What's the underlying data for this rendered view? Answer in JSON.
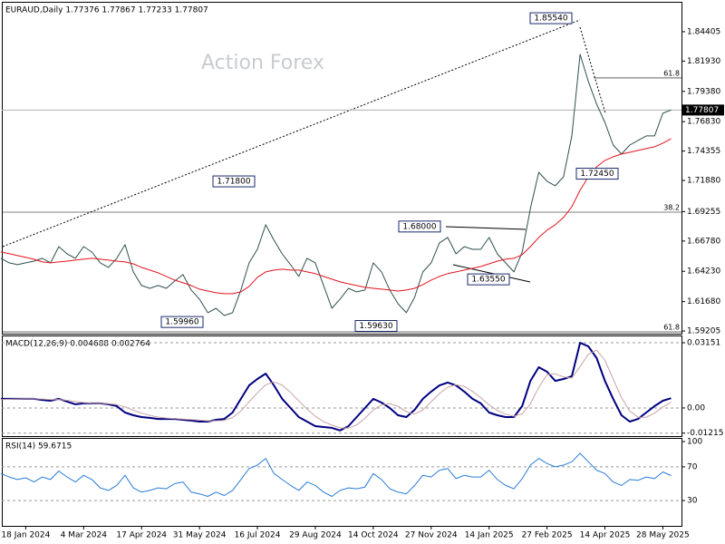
{
  "chart_data": [
    {
      "type": "line",
      "title": "EURAUD,Daily  1.77376 1.77867 1.77233 1.77807",
      "watermark": "Action Forex",
      "categories": [
        null,
        null,
        null,
        "18 Jan 2024",
        null,
        null,
        null,
        null,
        null,
        null,
        "4 Mar 2024",
        null,
        null,
        null,
        null,
        null,
        null,
        "17 Apr 2024",
        null,
        null,
        null,
        null,
        null,
        null,
        "31 May 2024",
        null,
        null,
        null,
        null,
        null,
        null,
        "16 Jul 2024",
        null,
        null,
        null,
        null,
        null,
        null,
        "29 Aug 2024",
        null,
        null,
        null,
        null,
        null,
        null,
        "14 Oct 2024",
        null,
        null,
        null,
        null,
        null,
        null,
        "27 Nov 2024",
        null,
        null,
        null,
        null,
        null,
        null,
        "14 Jan 2025",
        null,
        null,
        null,
        null,
        null,
        null,
        "27 Feb 2025",
        null,
        null,
        null,
        null,
        null,
        null,
        "14 Apr 2025",
        null,
        null,
        null,
        null,
        null,
        null,
        "28 May 2025",
        null
      ],
      "series": [
        {
          "color": "#2f4f4f",
          "values": [
            1.6532,
            1.6494,
            1.6479,
            1.6494,
            1.6509,
            1.6532,
            1.6494,
            1.6631,
            1.657,
            1.6532,
            1.6631,
            1.6585,
            1.6494,
            1.6456,
            1.6532,
            1.6647,
            1.6418,
            1.6303,
            1.628,
            1.6303,
            1.628,
            1.6341,
            1.6395,
            1.6265,
            1.6189,
            1.6074,
            1.6112,
            1.6051,
            1.6074,
            1.6265,
            1.6494,
            1.6608,
            1.6815,
            1.6685,
            1.657,
            1.6479,
            1.638,
            1.6532,
            1.6494,
            1.6303,
            1.6112,
            1.6189,
            1.628,
            1.625,
            1.6265,
            1.6494,
            1.6418,
            1.6265,
            1.615,
            1.6074,
            1.6204,
            1.6418,
            1.6494,
            1.6662,
            1.6708,
            1.657,
            1.6631,
            1.6608,
            1.6608,
            1.6708,
            1.657,
            1.6494,
            1.6418,
            1.6585,
            1.6952,
            1.7257,
            1.7181,
            1.7143,
            1.7219,
            1.7563,
            1.825,
            1.8021,
            1.783,
            1.7677,
            1.7486,
            1.741,
            1.7486,
            1.7525,
            1.7563,
            1.7563,
            1.7754,
            1.7781
          ]
        },
        {
          "color": "#e3141e",
          "values": [
            1.6586,
            1.6571,
            1.6555,
            1.654,
            1.6525,
            1.6502,
            1.6494,
            1.6502,
            1.6509,
            1.6517,
            1.6525,
            1.6532,
            1.6525,
            1.6517,
            1.6509,
            1.6502,
            1.6486,
            1.6456,
            1.6433,
            1.641,
            1.638,
            1.6349,
            1.6326,
            1.6303,
            1.6273,
            1.6257,
            1.6242,
            1.6235,
            1.6235,
            1.625,
            1.6296,
            1.6372,
            1.6418,
            1.6433,
            1.6441,
            1.6433,
            1.6433,
            1.6418,
            1.6403,
            1.638,
            1.6357,
            1.6334,
            1.6318,
            1.6303,
            1.6288,
            1.628,
            1.6273,
            1.6265,
            1.6257,
            1.6265,
            1.628,
            1.6311,
            1.6349,
            1.638,
            1.6403,
            1.6418,
            1.6433,
            1.6448,
            1.6464,
            1.6486,
            1.6509,
            1.6525,
            1.6532,
            1.6563,
            1.6631,
            1.6708,
            1.6769,
            1.6815,
            1.6876,
            1.6967,
            1.7105,
            1.7219,
            1.7303,
            1.7357,
            1.7387,
            1.741,
            1.7425,
            1.7441,
            1.7456,
            1.7471,
            1.7502,
            1.754
          ]
        }
      ],
      "ylim": [
        1.5898,
        1.8692
      ],
      "yticks": [
        1.84405,
        {
          "value": 1.8193,
          "label": "1.81930"
        },
        {
          "value": 1.7938,
          "label": "1.79380"
        },
        {
          "value": 1.7683,
          "label": "1.76830"
        },
        1.74355,
        {
          "value": 1.7188,
          "label": "1.71880"
        },
        1.69255,
        {
          "value": 1.6678,
          "label": "1.66780"
        },
        {
          "value": 1.6423,
          "label": "1.64230"
        },
        {
          "value": 1.6168,
          "label": "1.61680"
        },
        1.59205
      ],
      "grid": false,
      "current_price": 1.77807,
      "annotations": [
        {
          "value": 1.8554,
          "label": "1.85540"
        },
        {
          "value": 1.718,
          "label": "1.71800"
        },
        {
          "value": 1.68,
          "label": "1.68000"
        },
        {
          "value": 1.6355,
          "label": "1.63550"
        },
        {
          "value": 1.5996,
          "label": "1.59960"
        },
        {
          "value": 1.5963,
          "label": "1.59630"
        },
        {
          "value": 1.7245,
          "label": "1.72450"
        }
      ],
      "levels": [
        {
          "value": 1.8051,
          "label": "61.8"
        },
        {
          "value": 1.6921,
          "label": "38.2"
        },
        {
          "value": 1.5913,
          "label": "61.8"
        }
      ]
    },
    {
      "type": "line",
      "title": "MACD(12,26,9) 0.004688 0.002764",
      "series": [
        {
          "color": "#000080",
          "values": [
            0.0044,
            0.0044,
            0.0044,
            0.0044,
            0.0044,
            0.0039,
            0.0035,
            0.0044,
            0.0031,
            0.0018,
            0.0022,
            0.0022,
            0.0022,
            0.0018,
            0.0009,
            -0.0022,
            -0.0035,
            -0.0044,
            -0.0048,
            -0.0053,
            -0.0053,
            -0.0053,
            -0.0057,
            -0.0061,
            -0.0066,
            -0.0066,
            -0.0057,
            -0.0053,
            -0.0022,
            0.0044,
            0.0109,
            0.014,
            0.0166,
            0.0109,
            0.0044,
            0,
            -0.0044,
            -0.0066,
            -0.0088,
            -0.0092,
            -0.0096,
            -0.0109,
            -0.0088,
            -0.0044,
            0,
            0.0044,
            0.0026,
            0,
            -0.0035,
            -0.0044,
            -0.0009,
            0.0044,
            0.0079,
            0.0109,
            0.0123,
            0.0109,
            0.0079,
            0.0044,
            0.0022,
            -0.0022,
            -0.0035,
            -0.0044,
            -0.0044,
            0.0009,
            0.0131,
            0.0197,
            0.0175,
            0.0131,
            0.014,
            0.0153,
            0.0315,
            0.0298,
            0.0241,
            0.0131,
            0.0044,
            -0.0035,
            -0.0066,
            -0.0053,
            -0.0022,
            0.0009,
            0.0035,
            0.0047
          ]
        },
        {
          "color": "#c9a3a3",
          "values": [
            0.004,
            0.0042,
            0.0043,
            0.0044,
            0.0044,
            0.0043,
            0.004,
            0.004,
            0.0037,
            0.0031,
            0.0026,
            0.0023,
            0.0022,
            0.0021,
            0.0016,
            0.0005,
            -0.0011,
            -0.0025,
            -0.0036,
            -0.0044,
            -0.0049,
            -0.0052,
            -0.0054,
            -0.0056,
            -0.0059,
            -0.0062,
            -0.0062,
            -0.006,
            -0.0046,
            -0.0015,
            0.003,
            0.0073,
            0.0112,
            0.0126,
            0.011,
            0.0075,
            0.0034,
            -0.0005,
            -0.004,
            -0.0066,
            -0.0083,
            -0.0096,
            -0.0098,
            -0.0082,
            -0.005,
            -0.001,
            0.0015,
            0.002,
            0.0008,
            -0.0018,
            -0.003,
            -0.001,
            0.003,
            0.007,
            0.01,
            0.0112,
            0.0104,
            0.008,
            0.005,
            0.0015,
            -0.0012,
            -0.003,
            -0.004,
            -0.0028,
            0.002,
            0.01,
            0.016,
            0.0165,
            0.015,
            0.0145,
            0.02,
            0.026,
            0.028,
            0.023,
            0.014,
            0.005,
            -0.0015,
            -0.0045,
            -0.0045,
            -0.0025,
            0.0005,
            0.0028
          ]
        }
      ],
      "ylim": [
        -0.0136,
        0.0346
      ],
      "yticks": [
        0.03151,
        {
          "value": 0,
          "label": "0.00"
        },
        -0.01215
      ],
      "grid": true
    },
    {
      "type": "line",
      "title": "RSI(14) 59.6715",
      "series": [
        {
          "color": "#2a7bd8",
          "values": [
            62,
            58,
            55,
            57,
            52,
            58,
            55,
            65,
            58,
            52,
            60,
            55,
            45,
            42,
            48,
            60,
            45,
            40,
            42,
            45,
            44,
            50,
            52,
            40,
            38,
            35,
            40,
            36,
            42,
            55,
            68,
            72,
            80,
            62,
            55,
            48,
            42,
            52,
            48,
            40,
            35,
            42,
            45,
            44,
            46,
            62,
            55,
            44,
            40,
            38,
            48,
            60,
            58,
            66,
            68,
            56,
            60,
            58,
            58,
            66,
            55,
            48,
            44,
            56,
            72,
            80,
            74,
            70,
            72,
            76,
            86,
            76,
            66,
            62,
            52,
            48,
            55,
            54,
            58,
            56,
            64,
            59.6715
          ]
        }
      ],
      "ylim": [
        0,
        100
      ],
      "yticks": [
        100,
        70,
        30
      ],
      "grid": true
    }
  ]
}
